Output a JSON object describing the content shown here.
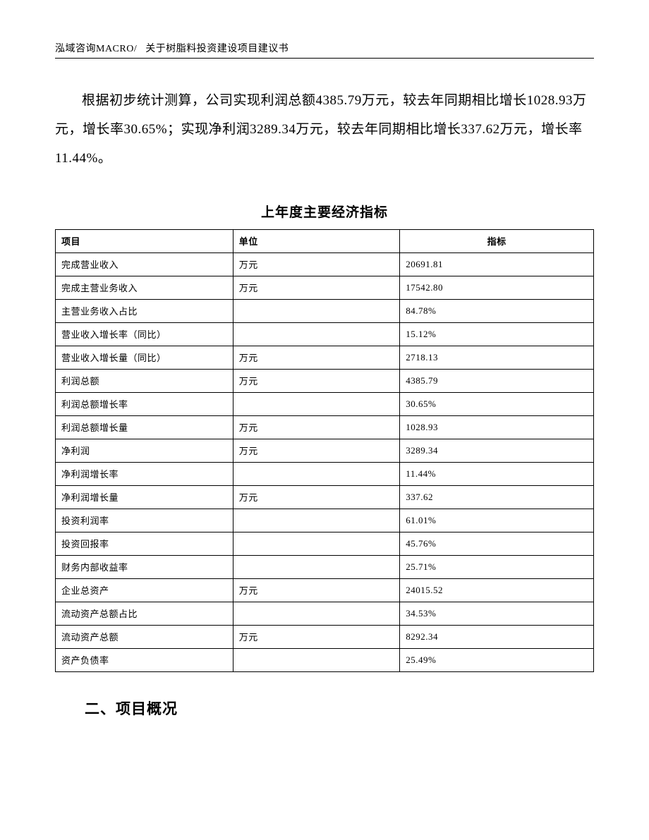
{
  "header": {
    "left": "泓域咨询MACRO/",
    "right": "关于树脂料投资建设项目建议书"
  },
  "paragraph": "根据初步统计测算，公司实现利润总额4385.79万元，较去年同期相比增长1028.93万元，增长率30.65%；实现净利润3289.34万元，较去年同期相比增长337.62万元，增长率11.44%。",
  "table": {
    "title": "上年度主要经济指标",
    "columns": [
      "项目",
      "单位",
      "指标"
    ],
    "rows": [
      {
        "item": "完成营业收入",
        "unit": "万元",
        "value": "20691.81"
      },
      {
        "item": "完成主营业务收入",
        "unit": "万元",
        "value": "17542.80"
      },
      {
        "item": "主营业务收入占比",
        "unit": "",
        "value": "84.78%"
      },
      {
        "item": "营业收入增长率（同比）",
        "unit": "",
        "value": "15.12%"
      },
      {
        "item": "营业收入增长量（同比）",
        "unit": "万元",
        "value": "2718.13"
      },
      {
        "item": "利润总额",
        "unit": "万元",
        "value": "4385.79"
      },
      {
        "item": "利润总额增长率",
        "unit": "",
        "value": "30.65%"
      },
      {
        "item": "利润总额增长量",
        "unit": "万元",
        "value": "1028.93"
      },
      {
        "item": "净利润",
        "unit": "万元",
        "value": "3289.34"
      },
      {
        "item": "净利润增长率",
        "unit": "",
        "value": "11.44%"
      },
      {
        "item": "净利润增长量",
        "unit": "万元",
        "value": "337.62"
      },
      {
        "item": "投资利润率",
        "unit": "",
        "value": "61.01%"
      },
      {
        "item": "投资回报率",
        "unit": "",
        "value": "45.76%"
      },
      {
        "item": "财务内部收益率",
        "unit": "",
        "value": "25.71%"
      },
      {
        "item": "企业总资产",
        "unit": "万元",
        "value": "24015.52"
      },
      {
        "item": "流动资产总额占比",
        "unit": "",
        "value": "34.53%"
      },
      {
        "item": "流动资产总额",
        "unit": "万元",
        "value": "8292.34"
      },
      {
        "item": "资产负债率",
        "unit": "",
        "value": "25.49%"
      }
    ]
  },
  "section_heading": "二、项目概况"
}
